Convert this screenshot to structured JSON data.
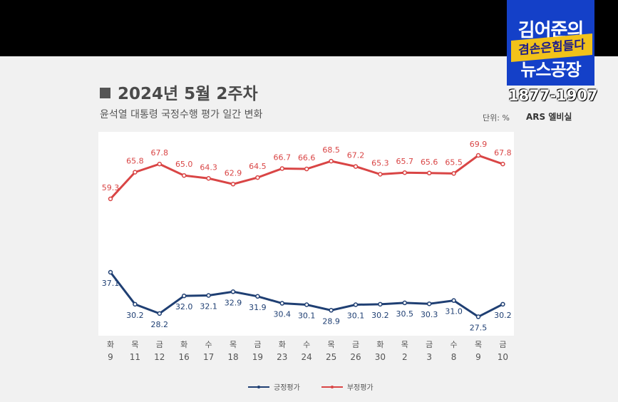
{
  "header": {
    "title": "2024년 5월 2주차",
    "subtitle": "윤석열 대통령 국정수행 평가 일간 변화",
    "unit": "단위: %",
    "survey_method": "ARS 엘비실"
  },
  "channel": {
    "logo_line1": "김어준의",
    "logo_line2": "겸손은힘들다",
    "logo_line3": "뉴스공장",
    "phone": "1877-1907"
  },
  "chart_data": {
    "type": "line",
    "x_days": [
      "화",
      "목",
      "금",
      "화",
      "수",
      "목",
      "금",
      "화",
      "수",
      "목",
      "금",
      "화",
      "목",
      "금",
      "수",
      "목",
      "금"
    ],
    "x_dates": [
      "9",
      "11",
      "12",
      "16",
      "17",
      "18",
      "19",
      "23",
      "24",
      "25",
      "26",
      "30",
      "2",
      "3",
      "8",
      "9",
      "10"
    ],
    "series": [
      {
        "name": "긍정평가",
        "color": "#1f3f73",
        "values": [
          37.1,
          30.2,
          28.2,
          32.0,
          32.1,
          32.9,
          31.9,
          30.4,
          30.1,
          28.9,
          30.1,
          30.2,
          30.5,
          30.3,
          31.0,
          27.5,
          30.2
        ],
        "labels": [
          "37.1",
          "30.2",
          "28.2",
          "32.0",
          "32.1",
          "32.9",
          "31.9",
          "30.4",
          "30.1",
          "28.9",
          "30.1",
          "30.2",
          "30.5",
          "30.3",
          "31.0",
          "27.5",
          "30.2"
        ]
      },
      {
        "name": "부정평가",
        "color": "#d94545",
        "values": [
          59.3,
          65.8,
          67.8,
          65.0,
          64.3,
          62.9,
          64.5,
          66.7,
          66.6,
          68.5,
          67.2,
          65.3,
          65.7,
          65.6,
          65.5,
          69.9,
          67.8
        ],
        "labels": [
          "59.3",
          "65.8",
          "67.8",
          "65.0",
          "64.3",
          "62.9",
          "64.5",
          "66.7",
          "66.6",
          "68.5",
          "67.2",
          "65.3",
          "65.7",
          "65.6",
          "65.5",
          "69.9",
          "67.8"
        ]
      }
    ],
    "grid": false,
    "legend_position": "bottom-center"
  }
}
